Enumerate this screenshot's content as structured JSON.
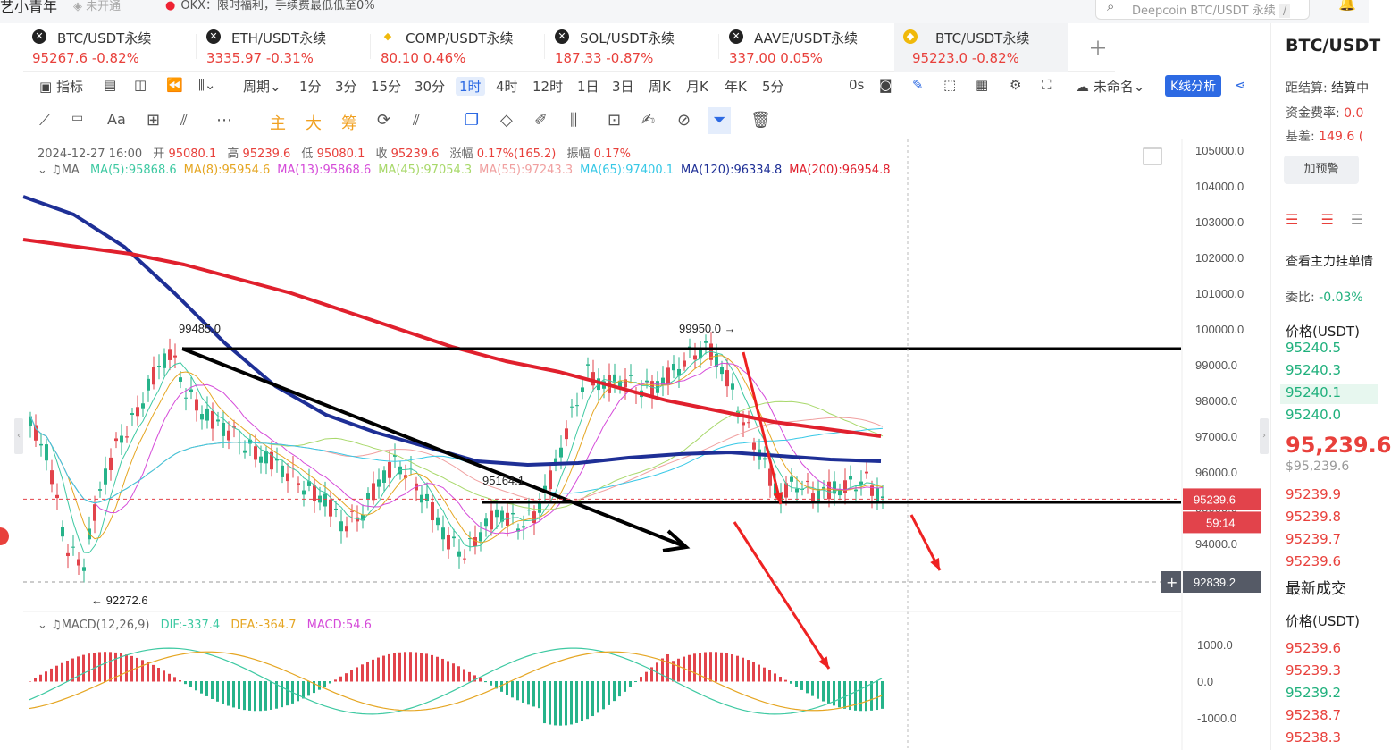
{
  "top": {
    "brand": "艺小青年",
    "badge": "未开通",
    "notice": "OKX：限时福利，手续费最低低至0%",
    "search_placeholder": "Deepcoin BTC/USDT 永续",
    "search_shortcut": "/"
  },
  "tabs": [
    {
      "name": "BTC/USDT永续",
      "price": "95267.6",
      "change": "-0.82%",
      "icon": "deepcoin-icon"
    },
    {
      "name": "ETH/USDT永续",
      "price": "3335.97",
      "change": "-0.31%",
      "icon": "deepcoin-icon"
    },
    {
      "name": "COMP/USDT永续",
      "price": "80.10",
      "change": "0.46%",
      "icon": "binance-icon"
    },
    {
      "name": "SOL/USDT永续",
      "price": "187.33",
      "change": "-0.87%",
      "icon": "deepcoin-icon"
    },
    {
      "name": "AAVE/USDT永续",
      "price": "337.00",
      "change": "0.05%",
      "icon": "deepcoin-icon"
    },
    {
      "name": "BTC/USDT永续",
      "price": "95223.0",
      "change": "-0.82%",
      "icon": "binance-icon",
      "active": true
    }
  ],
  "toolbar": {
    "indicators": "指标",
    "period": "周期",
    "intervals": [
      "1分",
      "3分",
      "15分",
      "30分",
      "1时",
      "4时",
      "12时",
      "1日",
      "3日",
      "周K",
      "月K",
      "年K",
      "5分"
    ],
    "active_interval": "1时",
    "countdown": "0s",
    "unnamed": "未命名",
    "kline_analysis": "K线分析"
  },
  "toolbar2": {
    "labels": [
      "主",
      "大",
      "筹"
    ]
  },
  "ohlc": {
    "time": "2024-12-27 16:00",
    "open_label": "开",
    "open": "95080.1",
    "high_label": "高",
    "high": "95239.6",
    "low_label": "低",
    "low": "95080.1",
    "close_label": "收",
    "close": "95239.6",
    "change_label": "涨幅",
    "change": "0.17%(165.2)",
    "amplitude_label": "振幅",
    "amplitude": "0.17%"
  },
  "ma": {
    "label": "MA",
    "items": [
      {
        "text": "MA(5):95868.6",
        "color": "#3ec9a2"
      },
      {
        "text": "MA(8):95954.6",
        "color": "#e5a623"
      },
      {
        "text": "MA(13):95868.6",
        "color": "#d54bd9"
      },
      {
        "text": "MA(45):97054.3",
        "color": "#a8d86a"
      },
      {
        "text": "MA(55):97243.3",
        "color": "#f0a0a0"
      },
      {
        "text": "MA(65):97400.1",
        "color": "#37c8e6"
      },
      {
        "text": "MA(120):96334.8",
        "color": "#1e2f96"
      },
      {
        "text": "MA(200):96954.8",
        "color": "#e0202d"
      }
    ]
  },
  "macd": {
    "label": "MACD(12,26,9)",
    "dif": "DIF:-337.4",
    "dea": "DEA:-364.7",
    "macd": "MACD:54.6",
    "axis": [
      "1000.0",
      "0.0",
      "-1000.0"
    ]
  },
  "chart_data": {
    "type": "candlestick",
    "y_axis_ticks": [
      "105000.0",
      "104000.0",
      "103000.0",
      "102000.0",
      "101000.0",
      "100000.0",
      "99000.0",
      "98000.0",
      "97000.0",
      "96000.0",
      "95000.0",
      "94000.0"
    ],
    "ylim": [
      92000,
      105300
    ],
    "annotations": [
      "99485.0",
      "99950.0",
      "95164.1",
      "92272.6"
    ],
    "current_price": "95239.6",
    "countdown": "59:14",
    "crosshair_price": "92839.2",
    "levels": [
      99450,
      95150
    ],
    "ma120": [
      103700,
      103200,
      102300,
      101000,
      99600,
      98400,
      97600,
      97100,
      96700,
      96300,
      96200,
      96250,
      96400,
      96500,
      96550,
      96450,
      96350,
      96300
    ],
    "ma200": [
      102500,
      102300,
      102100,
      101800,
      101400,
      101000,
      100500,
      100000,
      99500,
      99100,
      98800,
      98400,
      98000,
      97700,
      97400,
      97200,
      97000
    ]
  },
  "right_panel": {
    "symbol": "BTC/USDT",
    "settle_label": "距结算:",
    "settle_value": "结算中",
    "funding_label": "资金费率:",
    "funding_value": "0.0",
    "basis_label": "基差:",
    "basis_value": "149.6 (",
    "alert_button": "加预警",
    "depth_title": "查看主力挂单情",
    "ratio_label": "委比:",
    "ratio_value": "-0.03%",
    "price_header": "价格(USDT)",
    "asks": [
      "95240.5",
      "95240.3",
      "95240.1",
      "95240.0"
    ],
    "last_price": "95,239.6",
    "last_price_sub": "$95,239.6",
    "bids": [
      "95239.9",
      "95239.8",
      "95239.7",
      "95239.6"
    ],
    "trades_title": "最新成交",
    "trades_header": "价格(USDT)",
    "trades": [
      {
        "price": "95239.6",
        "color": "red"
      },
      {
        "price": "95239.3",
        "color": "red"
      },
      {
        "price": "95239.2",
        "color": "green"
      },
      {
        "price": "95238.7",
        "color": "red"
      },
      {
        "price": "95238.3",
        "color": "red"
      }
    ]
  }
}
